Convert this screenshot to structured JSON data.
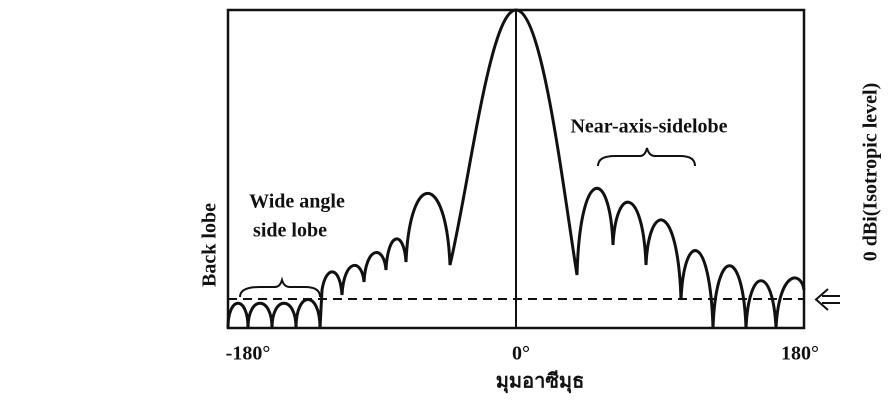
{
  "labels": {
    "back_lobe": "Back lobe",
    "wide_angle": [
      "Wide angle",
      "side lobe"
    ],
    "near_axis": "Near-axis-sidelobe",
    "isotropic": "0 dBi(Isotropic level)"
  },
  "x_axis": {
    "ticks": [
      "-180°",
      "0°",
      "180°"
    ],
    "title": "มุมอาซีมุธ"
  }
}
